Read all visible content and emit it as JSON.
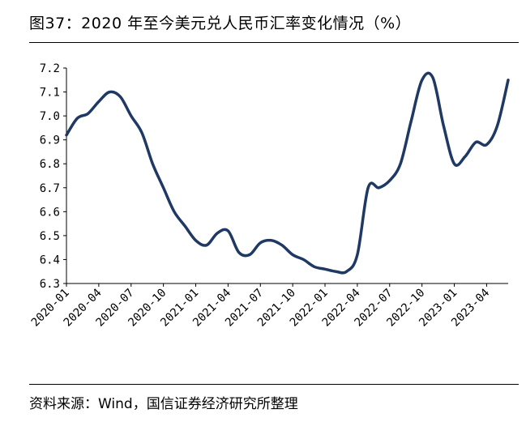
{
  "title": "图37：2020 年至今美元兑人民币汇率变化情况（%）",
  "source": "资料来源：Wind，国信证券经济研究所整理",
  "chart_data": {
    "type": "line",
    "title": "图37：2020 年至今美元兑人民币汇率变化情况（%）",
    "xlabel": "",
    "ylabel": "",
    "ylim": [
      6.3,
      7.2
    ],
    "yticks": [
      "7.2",
      "7.1",
      "7.0",
      "6.9",
      "6.8",
      "6.7",
      "6.6",
      "6.5",
      "6.4",
      "6.3"
    ],
    "xticks": [
      "2020-01",
      "2020-04",
      "2020-07",
      "2020-10",
      "2021-01",
      "2021-04",
      "2021-07",
      "2021-10",
      "2022-01",
      "2022-04",
      "2022-07",
      "2022-10",
      "2023-01",
      "2023-04"
    ],
    "grid": false,
    "legend": "none",
    "line_color": "#1f3864",
    "series": [
      {
        "x": [
          "2020-01",
          "2020-02",
          "2020-03",
          "2020-04",
          "2020-05",
          "2020-06",
          "2020-07",
          "2020-08",
          "2020-09",
          "2020-10",
          "2020-11",
          "2020-12",
          "2021-01",
          "2021-02",
          "2021-03",
          "2021-04",
          "2021-05",
          "2021-06",
          "2021-07",
          "2021-08",
          "2021-09",
          "2021-10",
          "2021-11",
          "2021-12",
          "2022-01",
          "2022-02",
          "2022-03",
          "2022-04",
          "2022-05",
          "2022-06",
          "2022-07",
          "2022-08",
          "2022-09",
          "2022-10",
          "2022-11",
          "2022-12",
          "2023-01",
          "2023-02",
          "2023-03",
          "2023-04",
          "2023-05",
          "2023-06"
        ],
        "values": [
          6.92,
          6.99,
          7.01,
          7.06,
          7.1,
          7.08,
          7.0,
          6.93,
          6.8,
          6.7,
          6.6,
          6.54,
          6.48,
          6.46,
          6.51,
          6.52,
          6.43,
          6.42,
          6.47,
          6.48,
          6.46,
          6.42,
          6.4,
          6.37,
          6.36,
          6.35,
          6.35,
          6.42,
          6.7,
          6.7,
          6.73,
          6.8,
          6.98,
          7.15,
          7.16,
          6.96,
          6.8,
          6.83,
          6.89,
          6.88,
          6.96,
          7.15
        ]
      }
    ]
  }
}
